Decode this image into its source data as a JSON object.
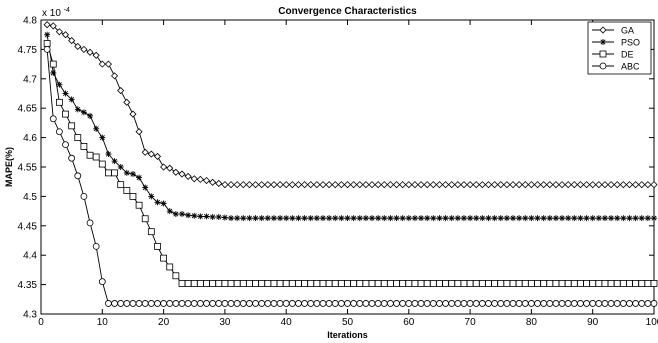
{
  "chart_data": {
    "type": "line",
    "title": "Convergence Characteristics",
    "xlabel": "Iterations",
    "ylabel": "MAPE(%)",
    "y_multiplier": "x 10",
    "y_exponent": "-4",
    "xlim": [
      0,
      100
    ],
    "ylim": [
      4.3,
      4.8
    ],
    "x_ticks": [
      "0",
      "10",
      "20",
      "30",
      "40",
      "50",
      "60",
      "70",
      "80",
      "90",
      "100"
    ],
    "y_ticks": [
      "4.3",
      "4.35",
      "4.4",
      "4.45",
      "4.5",
      "4.55",
      "4.6",
      "4.65",
      "4.7",
      "4.75",
      "4.8"
    ],
    "grid": false,
    "legend_position": "top-right",
    "series": [
      {
        "name": "GA",
        "marker": "diamond",
        "x": [
          1,
          2,
          3,
          4,
          5,
          6,
          7,
          8,
          9,
          10,
          11,
          12,
          13,
          14,
          15,
          16,
          17,
          18,
          19,
          20,
          21,
          22,
          23,
          24,
          25,
          26,
          27,
          28,
          29,
          30,
          100
        ],
        "y": [
          4.792,
          4.79,
          4.78,
          4.775,
          4.765,
          4.755,
          4.75,
          4.745,
          4.74,
          4.725,
          4.725,
          4.705,
          4.68,
          4.66,
          4.64,
          4.61,
          4.575,
          4.572,
          4.568,
          4.55,
          4.548,
          4.541,
          4.538,
          4.534,
          4.53,
          4.529,
          4.527,
          4.524,
          4.522,
          4.52,
          4.52
        ]
      },
      {
        "name": "PSO",
        "marker": "star",
        "x": [
          1,
          2,
          3,
          4,
          5,
          6,
          7,
          8,
          9,
          10,
          11,
          12,
          13,
          14,
          15,
          16,
          17,
          18,
          19,
          20,
          21,
          22,
          23,
          24,
          25,
          26,
          27,
          28,
          29,
          30,
          31,
          100
        ],
        "y": [
          4.775,
          4.71,
          4.69,
          4.675,
          4.665,
          4.648,
          4.643,
          4.637,
          4.615,
          4.6,
          4.572,
          4.56,
          4.55,
          4.54,
          4.538,
          4.532,
          4.515,
          4.5,
          4.49,
          4.488,
          4.475,
          4.47,
          4.47,
          4.468,
          4.467,
          4.466,
          4.466,
          4.465,
          4.465,
          4.464,
          4.463,
          4.463
        ]
      },
      {
        "name": "DE",
        "marker": "square",
        "x": [
          1,
          2,
          3,
          4,
          5,
          6,
          7,
          8,
          9,
          10,
          11,
          12,
          13,
          14,
          15,
          16,
          17,
          18,
          19,
          20,
          21,
          22,
          23,
          100
        ],
        "y": [
          4.76,
          4.725,
          4.66,
          4.64,
          4.62,
          4.6,
          4.585,
          4.57,
          4.567,
          4.555,
          4.54,
          4.54,
          4.52,
          4.51,
          4.5,
          4.485,
          4.462,
          4.44,
          4.415,
          4.395,
          4.38,
          4.365,
          4.352,
          4.352
        ]
      },
      {
        "name": "ABC",
        "marker": "circle",
        "x": [
          1,
          2,
          3,
          4,
          5,
          6,
          7,
          8,
          9,
          10,
          11,
          100
        ],
        "y": [
          4.75,
          4.632,
          4.61,
          4.588,
          4.565,
          4.535,
          4.5,
          4.455,
          4.415,
          4.355,
          4.318,
          4.318
        ]
      }
    ]
  }
}
